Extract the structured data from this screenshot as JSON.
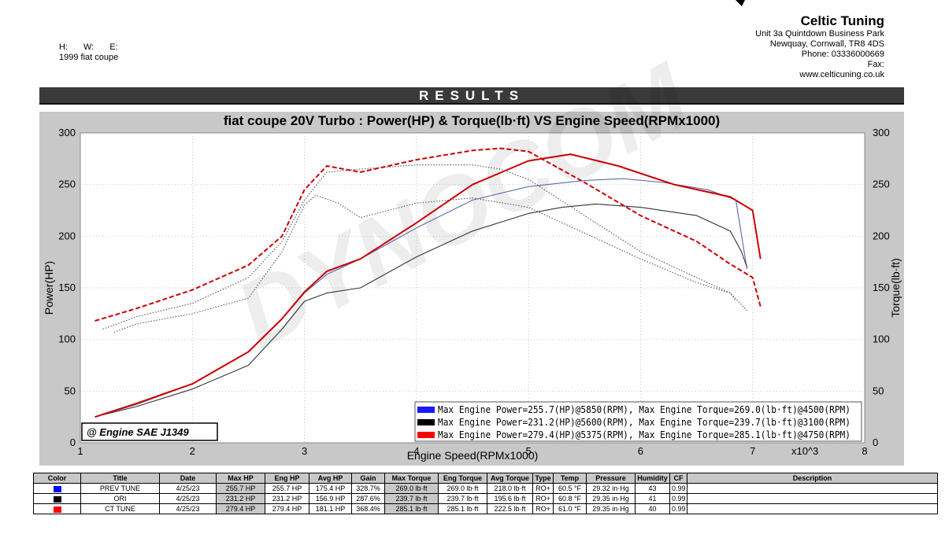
{
  "header": {
    "company": "Celtic Tuning",
    "address_lines": [
      "Unit 3a Quintdown Business Park",
      "Newquay, Cornwall, TR8 4DS",
      "Phone: 03336000669",
      "Fax:",
      "www.celticuning.co.uk"
    ],
    "hwe": [
      "H:",
      "W:",
      "E:"
    ],
    "vehicle": "1999 fiat  coupe",
    "results_label": "RESULTS"
  },
  "chart_data": {
    "type": "line",
    "title": "fiat coupe  20V Turbo  : Power(HP) & Torque(lb·ft) VS Engine Speed(RPMx1000)",
    "xlabel": "Engine Speed(RPMx1000)",
    "x_multiplier": "x10^3",
    "ylabel_left": "Power(HP)",
    "ylabel_right": "Torque(lb·ft)",
    "xlim": [
      1,
      8
    ],
    "ylim": [
      0,
      300
    ],
    "x_ticks": [
      "1",
      "2",
      "3",
      "4",
      "5",
      "6",
      "7",
      "8"
    ],
    "y_ticks": [
      "0",
      "50",
      "100",
      "150",
      "200",
      "250",
      "300"
    ],
    "watermark": "DYNOCOM",
    "standard_label": "@ Engine SAE J1349",
    "legend": [
      {
        "color": "#1a1aff",
        "text": "Max Engine Power=255.7(HP)@5850(RPM), Max Engine Torque=269.0(lb·ft)@4500(RPM)"
      },
      {
        "color": "#000000",
        "text": "Max Engine Power=231.2(HP)@5600(RPM), Max Engine Torque=239.7(lb·ft)@3100(RPM)"
      },
      {
        "color": "#ff0000",
        "text": "Max Engine Power=279.4(HP)@5375(RPM), Max Engine Torque=285.1(lb·ft)@4750(RPM)"
      }
    ],
    "series": [
      {
        "run": "PREV TUNE",
        "measure": "power",
        "color": "#5a6aa8",
        "style": "solid",
        "x": [
          1.2,
          1.5,
          2.0,
          2.5,
          2.8,
          3.0,
          3.2,
          3.5,
          4.0,
          4.5,
          5.0,
          5.5,
          5.85,
          6.2,
          6.6,
          6.85,
          6.95
        ],
        "y": [
          27,
          37,
          57,
          88,
          120,
          145,
          163,
          178,
          208,
          235,
          248,
          254,
          255.7,
          252,
          245,
          235,
          168
        ]
      },
      {
        "run": "ORI",
        "measure": "power",
        "color": "#333333",
        "style": "solid",
        "x": [
          1.2,
          1.5,
          2.0,
          2.5,
          2.8,
          3.0,
          3.2,
          3.5,
          4.0,
          4.5,
          5.0,
          5.3,
          5.6,
          6.0,
          6.5,
          6.8,
          6.9,
          6.95
        ],
        "y": [
          27,
          35,
          52,
          75,
          110,
          137,
          145,
          150,
          180,
          205,
          222,
          228,
          231.2,
          228,
          220,
          205,
          185,
          170
        ]
      },
      {
        "run": "CT TUNE",
        "measure": "power",
        "color": "#cc0000",
        "style": "solid",
        "x": [
          1.13,
          1.5,
          2.0,
          2.5,
          2.8,
          3.0,
          3.2,
          3.5,
          4.0,
          4.5,
          5.0,
          5.375,
          5.8,
          6.3,
          6.8,
          7.0,
          7.07
        ],
        "y": [
          25,
          38,
          57,
          88,
          120,
          146,
          166,
          178,
          213,
          250,
          273,
          279.4,
          268,
          250,
          238,
          225,
          178
        ]
      },
      {
        "run": "PREV TUNE",
        "measure": "torque",
        "color": "#555555",
        "style": "dotted",
        "x": [
          1.2,
          1.5,
          2.0,
          2.5,
          2.8,
          3.0,
          3.2,
          3.5,
          4.0,
          4.5,
          4.75,
          5.0,
          5.5,
          6.0,
          6.5,
          6.8,
          6.95
        ],
        "y": [
          110,
          122,
          135,
          160,
          195,
          235,
          262,
          265,
          269,
          269,
          265,
          255,
          220,
          185,
          160,
          145,
          128
        ]
      },
      {
        "run": "ORI",
        "measure": "torque",
        "color": "#555555",
        "style": "dotted",
        "x": [
          1.3,
          1.5,
          2.0,
          2.5,
          2.8,
          3.0,
          3.1,
          3.3,
          3.5,
          4.0,
          4.5,
          5.0,
          5.5,
          6.0,
          6.5,
          6.8,
          6.85
        ],
        "y": [
          107,
          115,
          125,
          140,
          185,
          230,
          239.7,
          232,
          218,
          232,
          237,
          228,
          203,
          178,
          155,
          145,
          137
        ]
      },
      {
        "run": "CT TUNE",
        "measure": "torque",
        "color": "#cc0000",
        "style": "dashed",
        "x": [
          1.13,
          1.5,
          2.0,
          2.5,
          2.8,
          3.0,
          3.2,
          3.5,
          4.0,
          4.5,
          4.75,
          5.0,
          5.5,
          6.0,
          6.5,
          6.8,
          7.0,
          7.07
        ],
        "y": [
          118,
          130,
          148,
          172,
          200,
          245,
          268,
          262,
          274,
          283,
          285.1,
          282,
          252,
          220,
          195,
          173,
          160,
          132
        ]
      }
    ]
  },
  "table": {
    "headers": [
      "Color",
      "Title",
      "Date",
      "Max HP",
      "Eng HP",
      "Avg HP",
      "Gain",
      "Max Torque",
      "Eng Torque",
      "Avg Torque",
      "Type",
      "Temp",
      "Pressure",
      "Humidity",
      "CF",
      "Description"
    ],
    "rows": [
      {
        "color": "#0000ff",
        "cells": [
          "PREV TUNE",
          "4/25/23",
          "255.7 HP",
          "255.7 HP",
          "175.4 HP",
          "328.7%",
          "269.0 lb·ft",
          "269.0 lb·ft",
          "218.0 lb·ft",
          "RO+",
          "60.5 °F",
          "29.32 in·Hg",
          "43",
          "0.99",
          ""
        ]
      },
      {
        "color": "#000000",
        "cells": [
          "ORI",
          "4/25/23",
          "231.2 HP",
          "231.2 HP",
          "156.9 HP",
          "287.6%",
          "239.7 lb·ft",
          "239.7 lb·ft",
          "195.6 lb·ft",
          "RO+",
          "60.8 °F",
          "29.35 in·Hg",
          "41",
          "0.99",
          ""
        ]
      },
      {
        "color": "#ff0000",
        "cells": [
          "CT TUNE",
          "4/25/23",
          "279.4 HP",
          "279.4 HP",
          "181.1 HP",
          "368.4%",
          "285.1 lb·ft",
          "285.1 lb·ft",
          "222.5 lb·ft",
          "RO+",
          "61.0 °F",
          "29.35 in·Hg",
          "40",
          "0.99",
          ""
        ]
      }
    ]
  }
}
